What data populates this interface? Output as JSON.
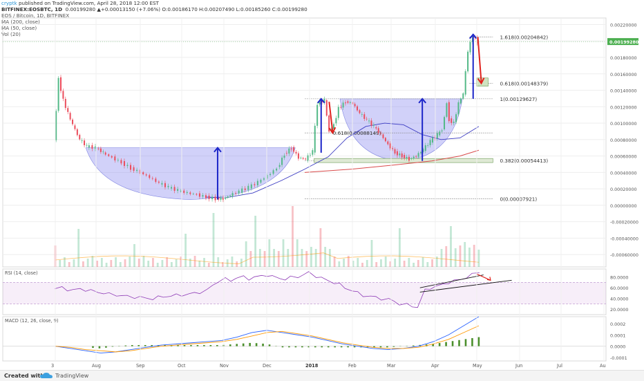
{
  "header": {
    "user": "cryptk",
    "published": "published on TradingView.com, April 28, 2018 12:00 EST",
    "symbol_line": "BITFINEX:EOSBTC, 1D",
    "ohlc_line": "0.00199280 ▲+0.00013150 (+7.06%) O:0.00186170 H:0.00207490 L:0.00185260 C:0.00199280",
    "legend": [
      "EOS / Bitcoin, 1D, BITFINEX",
      "MA (200, close)",
      "MA (50, close)",
      "Vol (20)"
    ]
  },
  "footer": {
    "created": "Created with",
    "brand": "TradingView",
    "logo_icon": "tradingview-cloud-icon"
  },
  "colors": {
    "up": "#53b987",
    "down": "#eb4d5c",
    "ma200": "#d94a4a",
    "ma50": "#3b3bc2",
    "pattern": "#7b7bef",
    "arrow_up": "#1a24c8",
    "arrow_down": "#e0221d",
    "rsi": "#8e3bb6",
    "macd": "#2962ff",
    "signal": "#ff9800",
    "hist": "#4b8f2c",
    "last_price": "#4caf50"
  },
  "chart_data": [
    {
      "type": "candlestick",
      "title": "EOS / Bitcoin, 1D, BITFINEX",
      "x_ticks": [
        "3",
        "Aug",
        "Sep",
        "Oct",
        "Nov",
        "Dec",
        "2018",
        "Feb",
        "Mar",
        "Apr",
        "May",
        "Jun",
        "Jul",
        "Au"
      ],
      "y_ticks": [
        "0.00220000",
        "0.00200000",
        "0.00180000",
        "0.00160000",
        "0.00140000",
        "0.00120000",
        "0.00100000",
        "0.00080000",
        "0.00060000",
        "0.00040000",
        "0.00020000",
        "0.00000000",
        "-0.00020000",
        "-0.00040000",
        "-0.00060000"
      ],
      "ylim": [
        -0.00075,
        0.00228
      ],
      "last_price": "0.00199280",
      "fib_levels": [
        {
          "label": "1.618(0.00204842)",
          "value": 0.00204842
        },
        {
          "label": "0.618(0.00148379)",
          "value": 0.00148379
        },
        {
          "label": "1(0.00129627)",
          "value": 0.00129627
        },
        {
          "label": "0.618(0.00088149)",
          "value": 0.00088149
        },
        {
          "label": "0.382(0.00054413)",
          "value": 0.00054413
        },
        {
          "label": "0(0.00007921)",
          "value": 7.921e-05
        }
      ],
      "price_path": [
        [
          0.0,
          0.00078
        ],
        [
          1.0,
          0.00154
        ],
        [
          2.0,
          0.00128
        ],
        [
          3.0,
          0.00112
        ],
        [
          4.0,
          0.00098
        ],
        [
          5.5,
          0.0008
        ],
        [
          7.0,
          0.00072
        ],
        [
          9.0,
          0.0007
        ],
        [
          10.5,
          0.00064
        ],
        [
          12.5,
          0.00058
        ],
        [
          14.5,
          0.00052
        ],
        [
          16.5,
          0.00045
        ],
        [
          18.5,
          0.0004
        ],
        [
          20.5,
          0.00034
        ],
        [
          22.5,
          0.00027
        ],
        [
          24.5,
          0.00022
        ],
        [
          26.5,
          0.00018
        ],
        [
          28.5,
          0.00015
        ],
        [
          30.5,
          0.00013
        ],
        [
          32.5,
          0.0001
        ],
        [
          34.5,
          8e-05
        ],
        [
          36.0,
          8e-05
        ],
        [
          37.5,
          0.00012
        ],
        [
          39.5,
          0.00017
        ],
        [
          41.5,
          0.00022
        ],
        [
          43.5,
          0.00028
        ],
        [
          45.5,
          0.00036
        ],
        [
          47.5,
          0.00045
        ],
        [
          49.0,
          0.00062
        ],
        [
          50.5,
          0.0007
        ],
        [
          52.0,
          0.00058
        ],
        [
          53.5,
          0.00056
        ],
        [
          55.0,
          0.00066
        ],
        [
          56.0,
          0.00124
        ],
        [
          57.5,
          0.00128
        ],
        [
          58.5,
          0.0009
        ],
        [
          59.5,
          0.00098
        ],
        [
          60.5,
          0.00118
        ],
        [
          62.0,
          0.00126
        ],
        [
          63.5,
          0.00124
        ],
        [
          65.0,
          0.00112
        ],
        [
          66.5,
          0.00104
        ],
        [
          68.0,
          0.00096
        ],
        [
          69.5,
          0.00086
        ],
        [
          71.0,
          0.00074
        ],
        [
          72.5,
          0.00064
        ],
        [
          74.0,
          0.0006
        ],
        [
          75.5,
          0.00056
        ],
        [
          77.0,
          0.0006
        ],
        [
          78.5,
          0.00068
        ],
        [
          80.0,
          0.00078
        ],
        [
          81.5,
          0.00086
        ],
        [
          82.5,
          0.00092
        ],
        [
          83.5,
          0.00124
        ],
        [
          84.0,
          0.00104
        ],
        [
          85.0,
          0.001
        ],
        [
          86.0,
          0.00124
        ],
        [
          87.0,
          0.00136
        ],
        [
          88.0,
          0.00188
        ],
        [
          89.0,
          0.00206
        ],
        [
          90.0,
          0.00199
        ]
      ],
      "ma200": [
        [
          53.0,
          0.0004
        ],
        [
          63.0,
          0.00044
        ],
        [
          72.0,
          0.00049
        ],
        [
          80.0,
          0.00054
        ],
        [
          86.0,
          0.0006
        ],
        [
          90.0,
          0.00067
        ]
      ],
      "ma50": [
        [
          32.0,
          0.0001
        ],
        [
          36.0,
          9e-05
        ],
        [
          42.0,
          0.00015
        ],
        [
          48.0,
          0.0003
        ],
        [
          53.0,
          0.00044
        ],
        [
          58.0,
          0.00059
        ],
        [
          62.0,
          0.00082
        ],
        [
          66.0,
          0.00096
        ],
        [
          70.0,
          0.001
        ],
        [
          74.0,
          0.00098
        ],
        [
          78.0,
          0.00086
        ],
        [
          82.0,
          0.0008
        ],
        [
          86.0,
          0.00082
        ],
        [
          90.0,
          0.00096
        ]
      ],
      "patterns": [
        {
          "label": "cup-1",
          "x0": 6.5,
          "x1": 51.0,
          "top": 0.0007,
          "bottom": 7e-05
        },
        {
          "label": "cup-2",
          "x0": 60.5,
          "x1": 86.5,
          "top": 0.00129627,
          "bottom": 0.00054
        }
      ],
      "arrows_up": [
        [
          34.5,
          7e-05,
          0.0007
        ],
        [
          56.5,
          0.00064,
          0.00129627
        ],
        [
          78.0,
          0.00054,
          0.00129627
        ],
        [
          88.8,
          0.00129627,
          0.00208
        ]
      ],
      "arrows_down": [
        [
          58.2,
          0.00126,
          0.00088149
        ],
        [
          89.8,
          0.00204842,
          0.00148379
        ]
      ],
      "volume": {
        "count": 92,
        "note": "daily volume bars"
      }
    },
    {
      "type": "line",
      "title": "RSI (14, close)",
      "y_ticks": [
        "80.0000",
        "60.0000",
        "40.0000",
        "20.0000"
      ],
      "ylim": [
        10,
        95
      ],
      "band": [
        30,
        70
      ],
      "series": [
        {
          "values": [
            58,
            60,
            57,
            55,
            58,
            56,
            54,
            52,
            50,
            48,
            47,
            45,
            44,
            43,
            42,
            41,
            40,
            42,
            44,
            45,
            46,
            47,
            48,
            50,
            52,
            55,
            65,
            72,
            76,
            74,
            78,
            80,
            77,
            79,
            82,
            84,
            80,
            78,
            76,
            79,
            81,
            84,
            88,
            82,
            78,
            74,
            70,
            66,
            60,
            55,
            50,
            46,
            44,
            42,
            40,
            38,
            35,
            30,
            28,
            26,
            24,
            55,
            60,
            62,
            66,
            70,
            72,
            76,
            80,
            84,
            90
          ]
        }
      ]
    },
    {
      "type": "line",
      "title": "MACD (12, 26, close, 9)",
      "y_ticks": [
        "0.0002",
        "0.0001",
        "0.0000",
        "-0.0001"
      ],
      "ylim": [
        -0.00013,
        0.00026
      ],
      "series": [
        {
          "values": [
            0.0,
            -2e-05,
            -4e-05,
            -6e-05,
            -5e-05,
            -3e-05,
            -1e-05,
            1e-05,
            2e-05,
            3e-05,
            4e-05,
            5e-05,
            8e-05,
            0.00012,
            0.00014,
            0.00012,
            0.0001,
            8e-05,
            5e-05,
            2e-05,
            0.0,
            -2e-05,
            -3e-05,
            -2e-05,
            0.0,
            4e-05,
            0.0001,
            0.00018,
            0.00026
          ]
        },
        {
          "values": [
            0.0,
            -1e-05,
            -3e-05,
            -4e-05,
            -5e-05,
            -4e-05,
            -2e-05,
            0.0,
            1e-05,
            2e-05,
            3e-05,
            4e-05,
            6e-05,
            9e-05,
            0.00012,
            0.00013,
            0.00011,
            9e-05,
            6e-05,
            3e-05,
            1e-05,
            -1e-05,
            -2e-05,
            -2e-05,
            -1e-05,
            2e-05,
            6e-05,
            0.00012,
            0.00018
          ]
        }
      ]
    }
  ]
}
